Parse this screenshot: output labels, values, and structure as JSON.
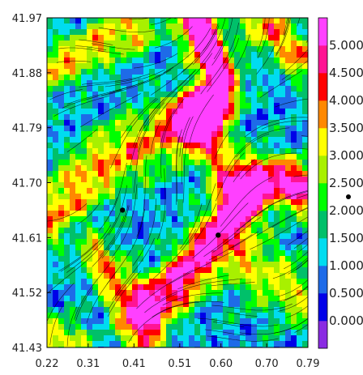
{
  "chart_data": {
    "type": "heatmap",
    "title": "",
    "xlabel": "",
    "ylabel": "",
    "xlim": [
      0.22,
      0.79
    ],
    "ylim": [
      41.43,
      41.97
    ],
    "x_ticks": [
      "0.22",
      "0.31",
      "0.41",
      "0.51",
      "0.60",
      "0.70",
      "0.79"
    ],
    "y_ticks": [
      "41.97",
      "41.88",
      "41.79",
      "41.70",
      "41.61",
      "41.52",
      "41.43"
    ],
    "overlay": "streamlines",
    "colorbar": {
      "levels": [
        "0.000",
        "0.500",
        "1.000",
        "1.500",
        "2.000",
        "2.500",
        "3.000",
        "3.500",
        "4.000",
        "4.500",
        "5.000"
      ],
      "colors": [
        "#8a2be2",
        "#0000e8",
        "#1e6be8",
        "#00dcf0",
        "#00c06a",
        "#00ff00",
        "#a8f000",
        "#ffff00",
        "#ff8800",
        "#ff0000",
        "#ff1493",
        "#ff40ff"
      ]
    },
    "points": [
      {
        "x": 0.385,
        "y": 41.655
      },
      {
        "x": 0.594,
        "y": 41.614
      }
    ],
    "colorbar_marker_level": 2.25
  }
}
